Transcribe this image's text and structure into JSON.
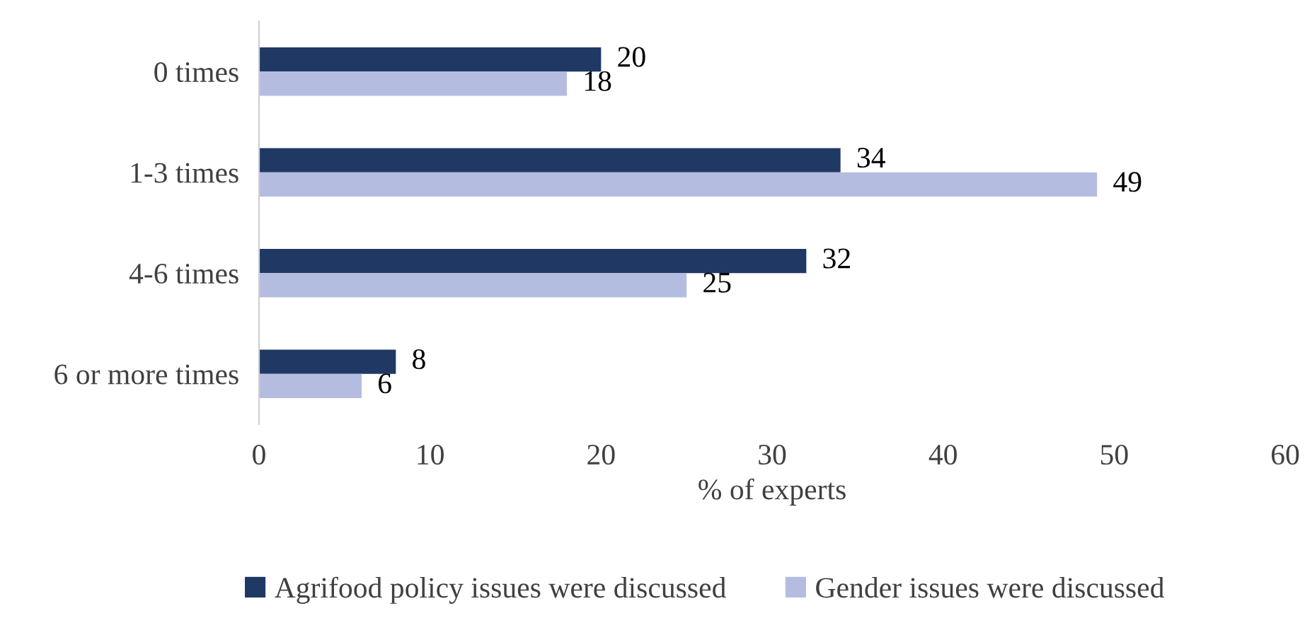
{
  "chart_data": {
    "type": "bar",
    "orientation": "horizontal",
    "xlabel": "% of experts",
    "categories": [
      "0 times",
      "1-3 times",
      "4-6 times",
      "6 or more times"
    ],
    "series": [
      {
        "name": "Agrifood policy issues were discussed",
        "color": "#203864",
        "values": [
          20,
          34,
          32,
          8
        ]
      },
      {
        "name": "Gender issues were discussed",
        "color": "#b4bde0",
        "values": [
          18,
          49,
          25,
          6
        ]
      }
    ],
    "xlim": [
      0,
      60
    ],
    "xticks": [
      0,
      10,
      20,
      30,
      40,
      50,
      60
    ],
    "grid": false,
    "legend": "bottom",
    "data_labels": true
  }
}
